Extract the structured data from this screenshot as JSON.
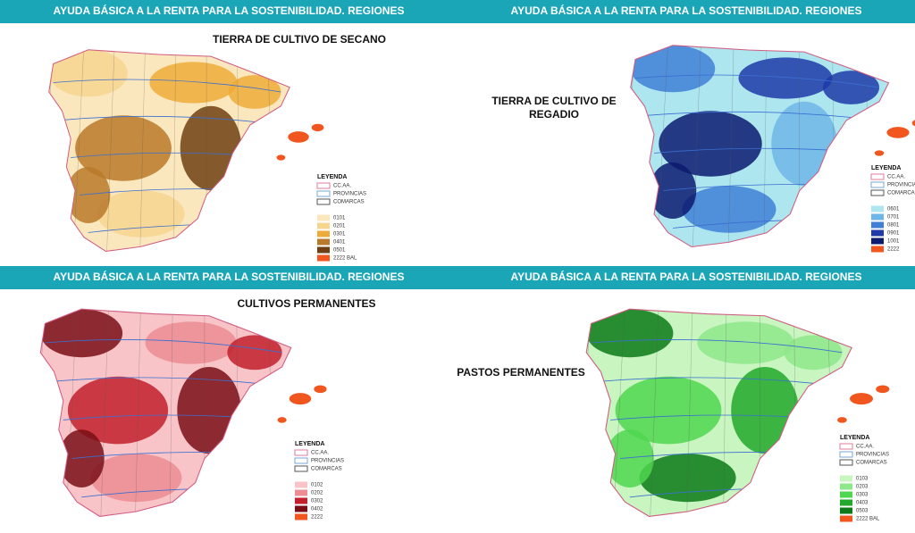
{
  "panels": [
    {
      "header": "AYUDA BÁSICA A LA RENTA PARA LA SOSTENIBILIDAD. REGIONES",
      "title_lines": [
        "TIERRA DE CULTIVO DE SECANO"
      ],
      "legend": {
        "title": "LEYENDA",
        "boundaries": [
          {
            "label": "CC.AA.",
            "color": "#e07b9a"
          },
          {
            "label": "PROVINCIAS",
            "color": "#7aa7d8"
          },
          {
            "label": "COMARCAS",
            "color": "#555555"
          }
        ],
        "classes": [
          {
            "code": "0101",
            "color": "#fbe7bd"
          },
          {
            "code": "0201",
            "color": "#f6d58f"
          },
          {
            "code": "0301",
            "color": "#eeab3a"
          },
          {
            "code": "0401",
            "color": "#b8792a"
          },
          {
            "code": "0501",
            "color": "#6e3f12"
          },
          {
            "code": "2222 BAL",
            "color": "#f0561e"
          }
        ]
      }
    },
    {
      "header": "AYUDA BÁSICA A LA RENTA PARA LA SOSTENIBILIDAD. REGIONES",
      "title_lines": [
        "TIERRA DE CULTIVO DE",
        "REGADIO"
      ],
      "legend": {
        "title": "LEYENDA",
        "boundaries": [
          {
            "label": "CC.AA.",
            "color": "#e07b9a"
          },
          {
            "label": "PROVINCIAS",
            "color": "#7aa7d8"
          },
          {
            "label": "COMARCAS",
            "color": "#555555"
          }
        ],
        "classes": [
          {
            "code": "0601",
            "color": "#aee6f0"
          },
          {
            "code": "0701",
            "color": "#6fb6e8"
          },
          {
            "code": "0801",
            "color": "#3f7fd6"
          },
          {
            "code": "0901",
            "color": "#1d3aa8"
          },
          {
            "code": "1001",
            "color": "#0c1a70"
          },
          {
            "code": "2222",
            "color": "#f0561e"
          }
        ]
      }
    },
    {
      "header": "AYUDA BÁSICA A LA RENTA PARA LA SOSTENIBILIDAD. REGIONES",
      "title_lines": [
        "CULTIVOS PERMANENTES"
      ],
      "legend": {
        "title": "LEYENDA",
        "boundaries": [
          {
            "label": "CC.AA.",
            "color": "#e07b9a"
          },
          {
            "label": "PROVINCIAS",
            "color": "#7aa7d8"
          },
          {
            "label": "COMARCAS",
            "color": "#555555"
          }
        ],
        "classes": [
          {
            "code": "0102",
            "color": "#f8c4c8"
          },
          {
            "code": "0202",
            "color": "#ec8d94"
          },
          {
            "code": "0302",
            "color": "#c2202c"
          },
          {
            "code": "0402",
            "color": "#7a0e16"
          },
          {
            "code": "2222",
            "color": "#f0561e"
          }
        ]
      }
    },
    {
      "header": "AYUDA BÁSICA A LA RENTA PARA LA SOSTENIBILIDAD. REGIONES",
      "title_lines": [
        "PASTOS PERMANENTES"
      ],
      "legend": {
        "title": "LEYENDA",
        "boundaries": [
          {
            "label": "CC.AA.",
            "color": "#e07b9a"
          },
          {
            "label": "PROVINCIAS",
            "color": "#7aa7d8"
          },
          {
            "label": "COMARCAS",
            "color": "#555555"
          }
        ],
        "classes": [
          {
            "code": "0103",
            "color": "#c8f5c0"
          },
          {
            "code": "0203",
            "color": "#8ee88a"
          },
          {
            "code": "0303",
            "color": "#4fd64f"
          },
          {
            "code": "0403",
            "color": "#22a82a"
          },
          {
            "code": "0503",
            "color": "#0c7a18"
          },
          {
            "code": "2222 BAL",
            "color": "#f0561e"
          }
        ]
      }
    }
  ]
}
